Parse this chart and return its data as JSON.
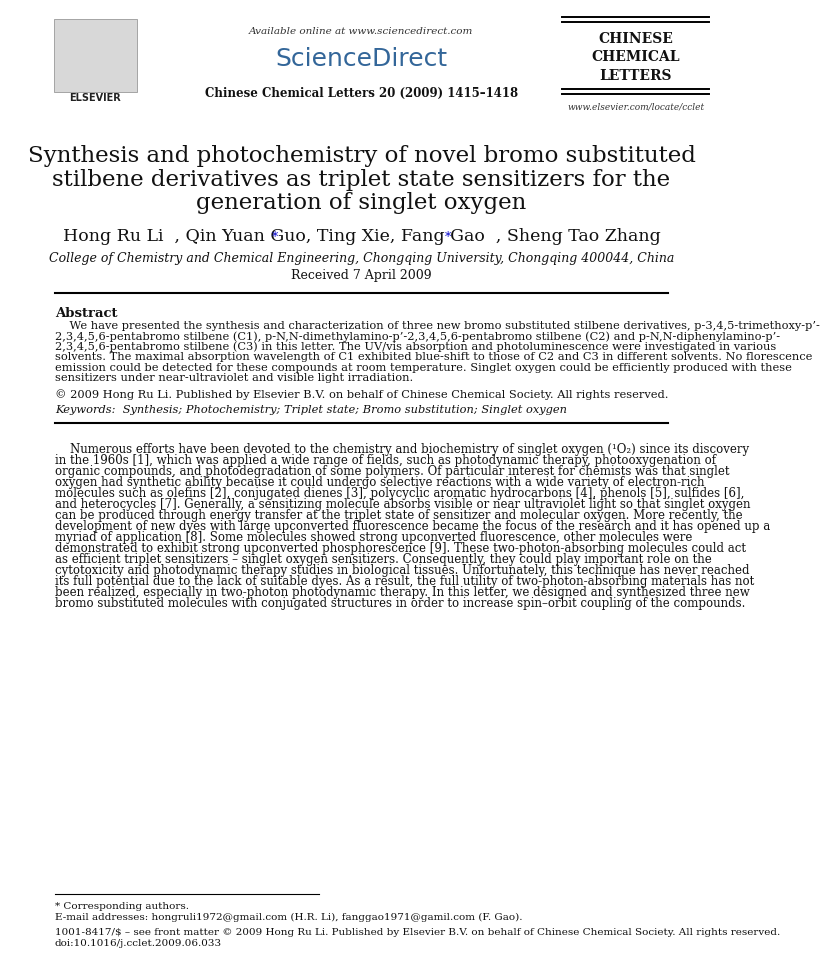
{
  "title_line1": "Synthesis and photochemistry of novel bromo substituted",
  "title_line2": "stilbene derivatives as triplet state sensitizers for the",
  "title_line3": "generation of singlet oxygen",
  "affiliation": "College of Chemistry and Chemical Engineering, Chongqing University, Chongqing 400044, China",
  "received": "Received 7 April 2009",
  "journal_header": "Available online at www.sciencedirect.com",
  "journal_name": "ScienceDirect",
  "journal_info": "Chinese Chemical Letters 20 (2009) 1415–1418",
  "journal_logo1": "CHINESE",
  "journal_logo2": "CHEMICAL",
  "journal_logo3": "LETTERS",
  "journal_url": "www.elsevier.com/locate/cclet",
  "abstract_title": "Abstract",
  "copyright": "© 2009 Hong Ru Li. Published by Elsevier B.V. on behalf of Chinese Chemical Society. All rights reserved.",
  "keywords": "Keywords:  Synthesis; Photochemistry; Triplet state; Bromo substitution; Singlet oxygen",
  "footnote_star": "* Corresponding authors.",
  "footnote_email": "E-mail addresses: hongruli1972@gmail.com (H.R. Li), fanggao1971@gamil.com (F. Gao).",
  "footnote_issn": "1001-8417/$ – see front matter © 2009 Hong Ru Li. Published by Elsevier B.V. on behalf of Chinese Chemical Society. All rights reserved.",
  "footnote_doi": "doi:10.1016/j.cclet.2009.06.033",
  "abstract_lines": [
    "    We have presented the synthesis and characterization of three new bromo substituted stilbene derivatives, p-3,4,5-trimethoxy-p’-",
    "2,3,4,5,6-pentabromo stilbene (C1), p-N,N-dimethylamino-p’-2,3,4,5,6-pentabromo stilbene (C2) and p-N,N-diphenylamino-p’-",
    "2,3,4,5,6-pentabromo stilbene (C3) in this letter. The UV/vis absorption and photoluminescence were investigated in various",
    "solvents. The maximal absorption wavelength of C1 exhibited blue-shift to those of C2 and C3 in different solvents. No florescence",
    "emission could be detected for these compounds at room temperature. Singlet oxygen could be efficiently produced with these",
    "sensitizers under near-ultraviolet and visible light irradiation."
  ],
  "body_lines": [
    "    Numerous efforts have been devoted to the chemistry and biochemistry of singlet oxygen (¹O₂) since its discovery",
    "in the 1960s [1], which was applied a wide range of fields, such as photodynamic therapy, photooxygenation of",
    "organic compounds, and photodegradation of some polymers. Of particular interest for chemists was that singlet",
    "oxygen had synthetic ability because it could undergo selective reactions with a wide variety of electron-rich",
    "molecules such as olefins [2], conjugated dienes [3], polycyclic aromatic hydrocarbons [4], phenols [5], sulfides [6],",
    "and heterocycles [7]. Generally, a sensitizing molecule absorbs visible or near ultraviolet light so that singlet oxygen",
    "can be produced through energy transfer at the triplet state of sensitizer and molecular oxygen. More recently, the",
    "development of new dyes with large upconverted fluorescence became the focus of the research and it has opened up a",
    "myriad of application [8]. Some molecules showed strong upconverted fluorescence, other molecules were",
    "demonstrated to exhibit strong upconverted phosphorescence [9]. These two-photon-absorbing molecules could act",
    "as efficient triplet sensitizers – singlet oxygen sensitizers. Consequently, they could play important role on the",
    "cytotoxicity and photodynamic therapy studies in biological tissues. Unfortunately, this technique has never reached",
    "its full potential due to the lack of suitable dyes. As a result, the full utility of two-photon-absorbing materials has not",
    "been realized, especially in two-photon photodynamic therapy. In this letter, we designed and synthesized three new",
    "bromo substituted molecules with conjugated structures in order to increase spin–orbit coupling of the compounds."
  ],
  "bg_color": "#ffffff",
  "text_color": "#111111",
  "blue_color": "#0000cc"
}
